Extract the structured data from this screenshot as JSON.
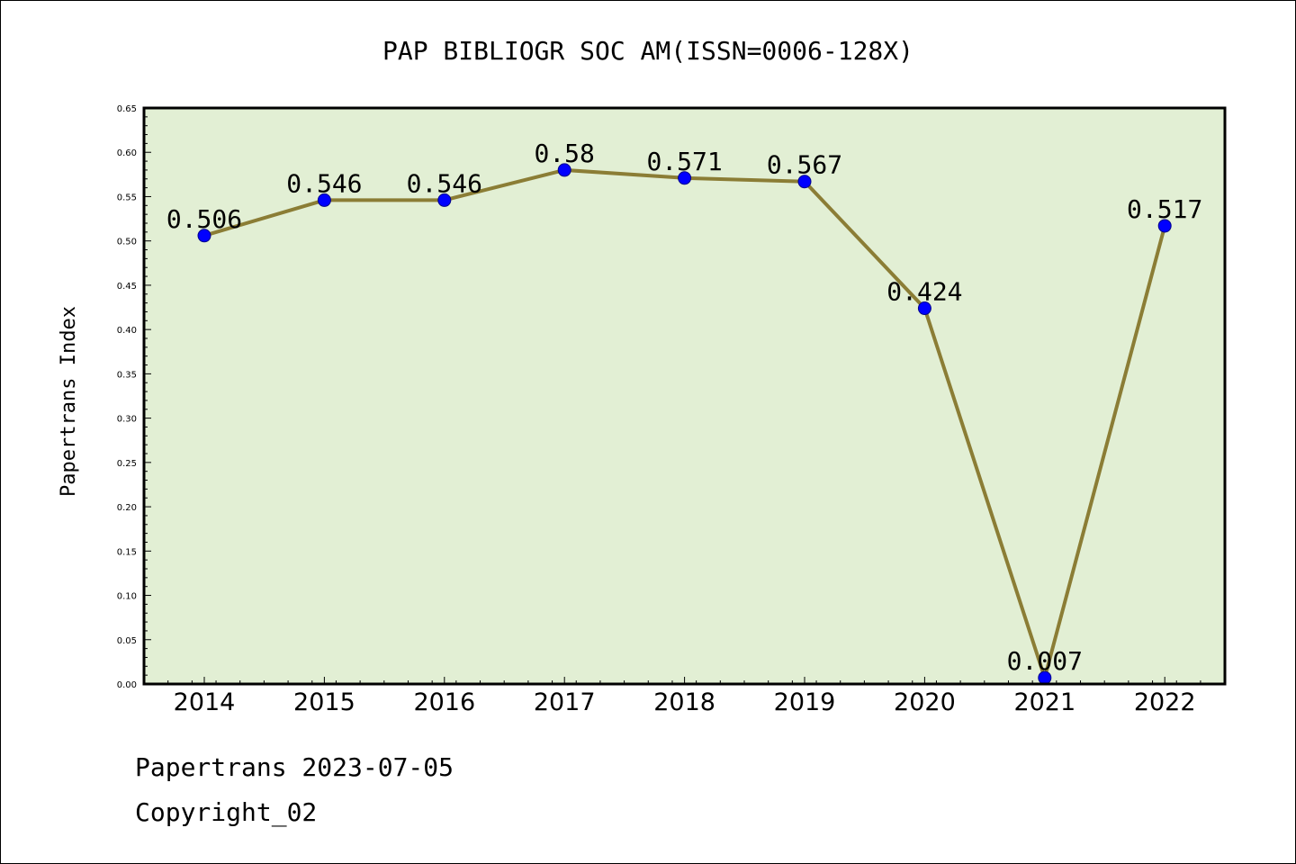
{
  "chart_data": {
    "type": "line",
    "title": "PAP BIBLIOGR SOC AM(ISSN=0006-128X)",
    "ylabel": "Papertrans Index",
    "xlabel": "",
    "categories": [
      "2014",
      "2015",
      "2016",
      "2017",
      "2018",
      "2019",
      "2020",
      "2021",
      "2022"
    ],
    "values": [
      0.506,
      0.546,
      0.546,
      0.58,
      0.571,
      0.567,
      0.424,
      0.007,
      0.517
    ],
    "data_labels": [
      "0.506",
      "0.546",
      "0.546",
      "0.58",
      "0.571",
      "0.567",
      "0.424",
      "0.007",
      "0.517"
    ],
    "ylim": [
      0,
      0.65
    ],
    "yticks": [
      "0.00",
      "0.05",
      "0.10",
      "0.15",
      "0.20",
      "0.25",
      "0.30",
      "0.35",
      "0.40",
      "0.45",
      "0.50",
      "0.55",
      "0.60",
      "0.65"
    ],
    "grid": false,
    "legend": "none",
    "colors": {
      "plot_background": "#e2efd4",
      "line": "#8b7d35",
      "marker": "#0000ff"
    }
  },
  "footer": {
    "date_line": "Papertrans 2023-07-05",
    "copyright_line": "Copyright_02"
  }
}
